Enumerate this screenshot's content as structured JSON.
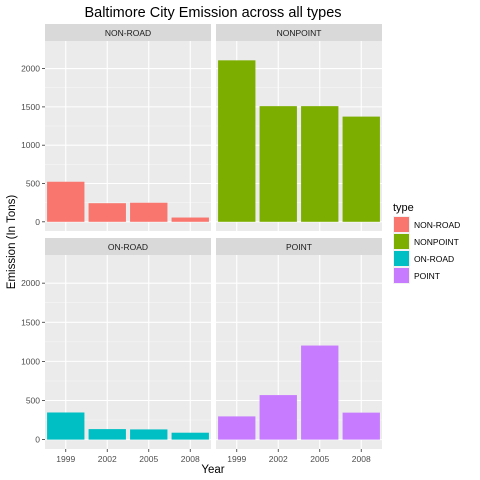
{
  "chart_data": {
    "type": "bar",
    "title": "Baltimore City Emission across all types",
    "xlabel": "Year",
    "ylabel": "Emission (In Tons)",
    "categories": [
      "1999",
      "2002",
      "2005",
      "2008"
    ],
    "ylim": [
      -120,
      2360
    ],
    "yticks": [
      0,
      500,
      1000,
      1500,
      2000
    ],
    "grid": true,
    "legend": {
      "title": "type",
      "position": "right"
    },
    "series": [
      {
        "name": "NON-ROAD",
        "color": "#F8766D",
        "values": [
          522.9,
          242.8,
          248.9,
          55.8
        ]
      },
      {
        "name": "NONPOINT",
        "color": "#7CAE00",
        "values": [
          2107.6,
          1509.5,
          1509.5,
          1373.2
        ]
      },
      {
        "name": "ON-ROAD",
        "color": "#00BFC4",
        "values": [
          346.8,
          134.3,
          130.4,
          88.3
        ]
      },
      {
        "name": "POINT",
        "color": "#C77CFF",
        "values": [
          296.8,
          569.3,
          1202.5,
          344.98
        ]
      }
    ]
  }
}
